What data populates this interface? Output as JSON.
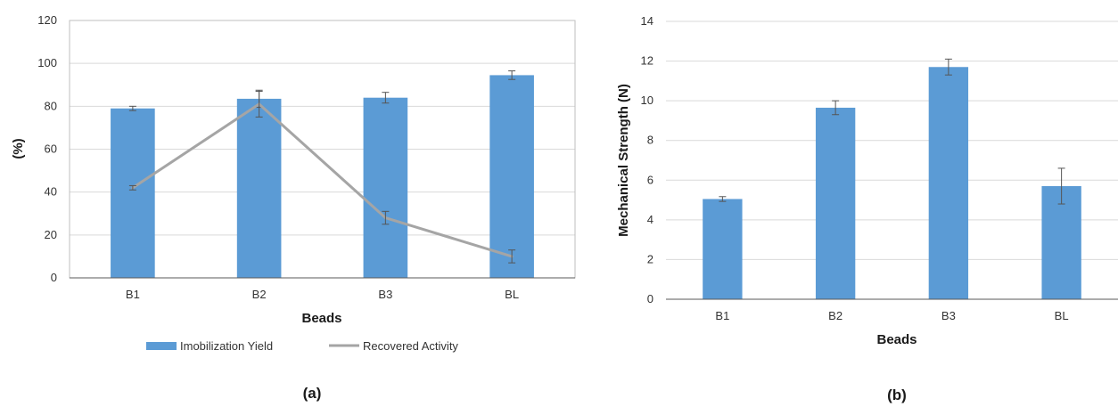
{
  "chart_data": [
    {
      "type": "bar",
      "panel_label": "(a)",
      "categories": [
        "B1",
        "B2",
        "B3",
        "BL"
      ],
      "xlabel": "Beads",
      "ylabel": "(%)",
      "ylim": [
        0,
        120
      ],
      "yticks": [
        0,
        20,
        40,
        60,
        80,
        100,
        120
      ],
      "grid": true,
      "legend_position": "bottom",
      "series": [
        {
          "name": "Imobilization Yield",
          "type": "bar",
          "color": "#5B9BD5",
          "values": [
            79,
            83.5,
            84,
            94.5
          ],
          "errors": [
            1,
            4,
            2.5,
            2
          ]
        },
        {
          "name": "Recovered Activity",
          "type": "line",
          "color": "#A5A5A5",
          "values": [
            42,
            81,
            28,
            10
          ],
          "errors": [
            1,
            6,
            3,
            3
          ]
        }
      ]
    },
    {
      "type": "bar",
      "panel_label": "(b)",
      "categories": [
        "B1",
        "B2",
        "B3",
        "BL"
      ],
      "xlabel": "Beads",
      "ylabel": "Mechanical Strength (N)",
      "ylim": [
        0,
        14
      ],
      "yticks": [
        0,
        2,
        4,
        6,
        8,
        10,
        12,
        14
      ],
      "grid": true,
      "series": [
        {
          "type": "bar",
          "color": "#5B9BD5",
          "values": [
            5.05,
            9.65,
            11.7,
            5.7
          ],
          "errors": [
            0.12,
            0.35,
            0.4,
            0.9
          ]
        }
      ]
    }
  ]
}
